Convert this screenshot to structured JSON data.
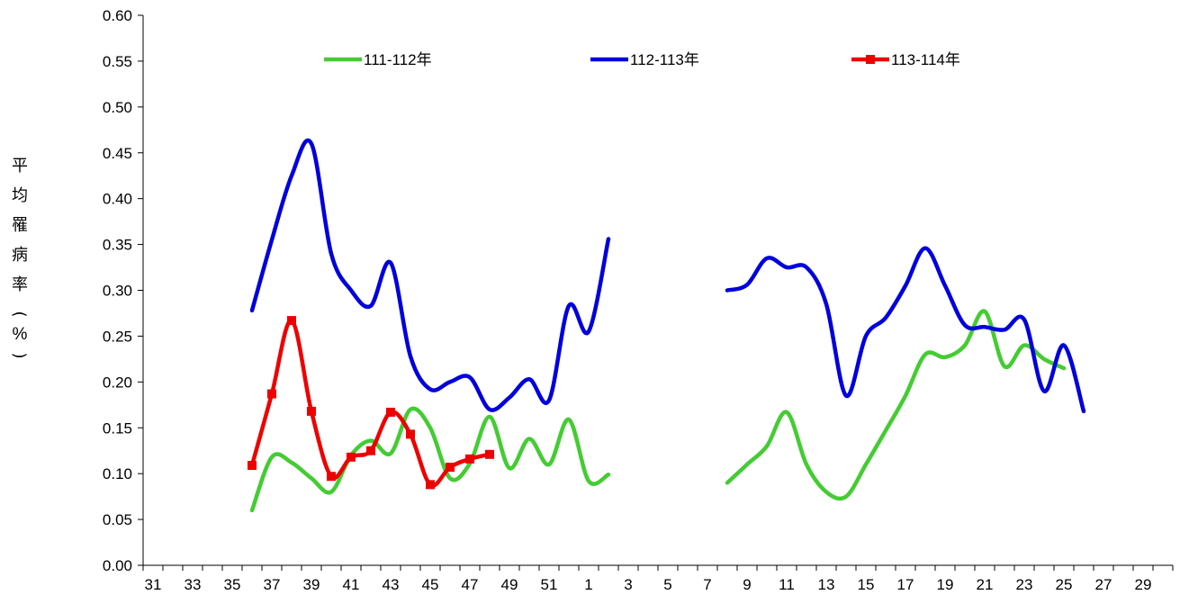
{
  "chart_data": {
    "type": "line",
    "ylabel": "平均罹病率(%)",
    "xlabel": "",
    "title": "",
    "ylim": [
      0,
      0.6
    ],
    "yticks": [
      "0.00",
      "0.05",
      "0.10",
      "0.15",
      "0.20",
      "0.25",
      "0.30",
      "0.35",
      "0.40",
      "0.45",
      "0.50",
      "0.55",
      "0.60"
    ],
    "xticks": [
      "31",
      "33",
      "35",
      "37",
      "39",
      "41",
      "43",
      "45",
      "47",
      "49",
      "51",
      "1",
      "3",
      "5",
      "7",
      "9",
      "11",
      "13",
      "15",
      "17",
      "19",
      "21",
      "23",
      "25",
      "27",
      "29"
    ],
    "week_sequence": [
      "31",
      "32",
      "33",
      "34",
      "35",
      "36",
      "37",
      "38",
      "39",
      "40",
      "41",
      "42",
      "43",
      "44",
      "45",
      "46",
      "47",
      "48",
      "49",
      "50",
      "51",
      "52",
      "1",
      "2",
      "3",
      "4",
      "5",
      "6",
      "7",
      "8",
      "9",
      "10",
      "11",
      "12",
      "13",
      "14",
      "15",
      "16",
      "17",
      "18",
      "19",
      "20",
      "21",
      "22",
      "23",
      "24",
      "25",
      "26",
      "27",
      "28",
      "29",
      "30"
    ],
    "legend_position": "top",
    "series": [
      {
        "name": "111-112年",
        "color": "#44cc33",
        "marker": "none",
        "segments": [
          [
            [
              "36",
              0.06
            ],
            [
              "37",
              0.118
            ],
            [
              "38",
              0.112
            ],
            [
              "39",
              0.095
            ],
            [
              "40",
              0.08
            ],
            [
              "41",
              0.12
            ],
            [
              "42",
              0.136
            ],
            [
              "43",
              0.122
            ],
            [
              "44",
              0.17
            ],
            [
              "45",
              0.15
            ],
            [
              "46",
              0.095
            ],
            [
              "47",
              0.111
            ],
            [
              "48",
              0.162
            ],
            [
              "49",
              0.106
            ],
            [
              "50",
              0.138
            ],
            [
              "51",
              0.11
            ],
            [
              "52",
              0.159
            ],
            [
              "1",
              0.092
            ],
            [
              "2",
              0.099
            ]
          ],
          [
            [
              "8",
              0.09
            ],
            [
              "9",
              0.11
            ],
            [
              "10",
              0.13
            ],
            [
              "11",
              0.167
            ],
            [
              "12",
              0.11
            ],
            [
              "13",
              0.08
            ],
            [
              "14",
              0.075
            ],
            [
              "15",
              0.11
            ],
            [
              "16",
              0.147
            ],
            [
              "17",
              0.185
            ],
            [
              "18",
              0.23
            ],
            [
              "19",
              0.227
            ],
            [
              "20",
              0.24
            ],
            [
              "21",
              0.277
            ],
            [
              "22",
              0.217
            ],
            [
              "23",
              0.24
            ],
            [
              "24",
              0.225
            ],
            [
              "25",
              0.215
            ]
          ]
        ]
      },
      {
        "name": "112-113年",
        "color": "#0000dd",
        "marker": "none",
        "segments": [
          [
            [
              "36",
              0.278
            ],
            [
              "37",
              0.355
            ],
            [
              "38",
              0.425
            ],
            [
              "39",
              0.46
            ],
            [
              "40",
              0.34
            ],
            [
              "41",
              0.3
            ],
            [
              "42",
              0.283
            ],
            [
              "43",
              0.33
            ],
            [
              "44",
              0.228
            ],
            [
              "45",
              0.192
            ],
            [
              "46",
              0.2
            ],
            [
              "47",
              0.205
            ],
            [
              "48",
              0.17
            ],
            [
              "49",
              0.183
            ],
            [
              "50",
              0.203
            ],
            [
              "51",
              0.18
            ],
            [
              "52",
              0.283
            ],
            [
              "1",
              0.255
            ],
            [
              "2",
              0.356
            ]
          ],
          [
            [
              "8",
              0.3
            ],
            [
              "9",
              0.306
            ],
            [
              "10",
              0.335
            ],
            [
              "11",
              0.325
            ],
            [
              "12",
              0.325
            ],
            [
              "13",
              0.285
            ],
            [
              "14",
              0.185
            ],
            [
              "15",
              0.25
            ],
            [
              "16",
              0.27
            ],
            [
              "17",
              0.305
            ],
            [
              "18",
              0.346
            ],
            [
              "19",
              0.305
            ],
            [
              "20",
              0.262
            ],
            [
              "21",
              0.26
            ],
            [
              "22",
              0.257
            ],
            [
              "23",
              0.268
            ],
            [
              "24",
              0.19
            ],
            [
              "25",
              0.24
            ],
            [
              "26",
              0.168
            ]
          ]
        ]
      },
      {
        "name": "113-114年",
        "color": "#ee0000",
        "marker": "square",
        "segments": [
          [
            [
              "36",
              0.109
            ],
            [
              "37",
              0.187
            ],
            [
              "38",
              0.267
            ],
            [
              "39",
              0.168
            ],
            [
              "40",
              0.097
            ],
            [
              "41",
              0.118
            ],
            [
              "42",
              0.125
            ],
            [
              "43",
              0.167
            ],
            [
              "44",
              0.143
            ],
            [
              "45",
              0.088
            ],
            [
              "46",
              0.107
            ],
            [
              "47",
              0.116
            ],
            [
              "48",
              0.121
            ]
          ]
        ]
      }
    ]
  }
}
